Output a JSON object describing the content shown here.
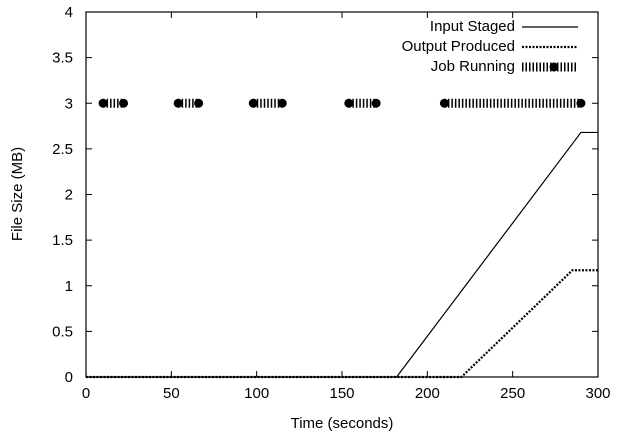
{
  "chart_data": {
    "type": "line",
    "xlabel": "Time (seconds)",
    "ylabel": "File Size (MB)",
    "xlim": [
      0,
      300
    ],
    "ylim": [
      0,
      4
    ],
    "x_ticks": [
      "0",
      "50",
      "100",
      "150",
      "200",
      "250",
      "300"
    ],
    "y_ticks": [
      "0",
      "0.5",
      "1",
      "1.5",
      "2",
      "2.5",
      "3",
      "3.5",
      "4"
    ],
    "grid": false,
    "legend_position": "top-right",
    "series": [
      {
        "name": "Input Staged",
        "style": "solid",
        "x": [
          0,
          182,
          290,
          300
        ],
        "y": [
          0,
          0,
          2.68,
          2.68
        ]
      },
      {
        "name": "Output Produced",
        "style": "dotted",
        "x": [
          0,
          220,
          285,
          300
        ],
        "y": [
          0,
          0,
          1.17,
          1.17
        ]
      },
      {
        "name": "Job Running",
        "style": "points",
        "y_level": 3,
        "intervals": [
          [
            10,
            22
          ],
          [
            54,
            66
          ],
          [
            98,
            115
          ],
          [
            154,
            170
          ],
          [
            210,
            290
          ]
        ]
      }
    ]
  }
}
